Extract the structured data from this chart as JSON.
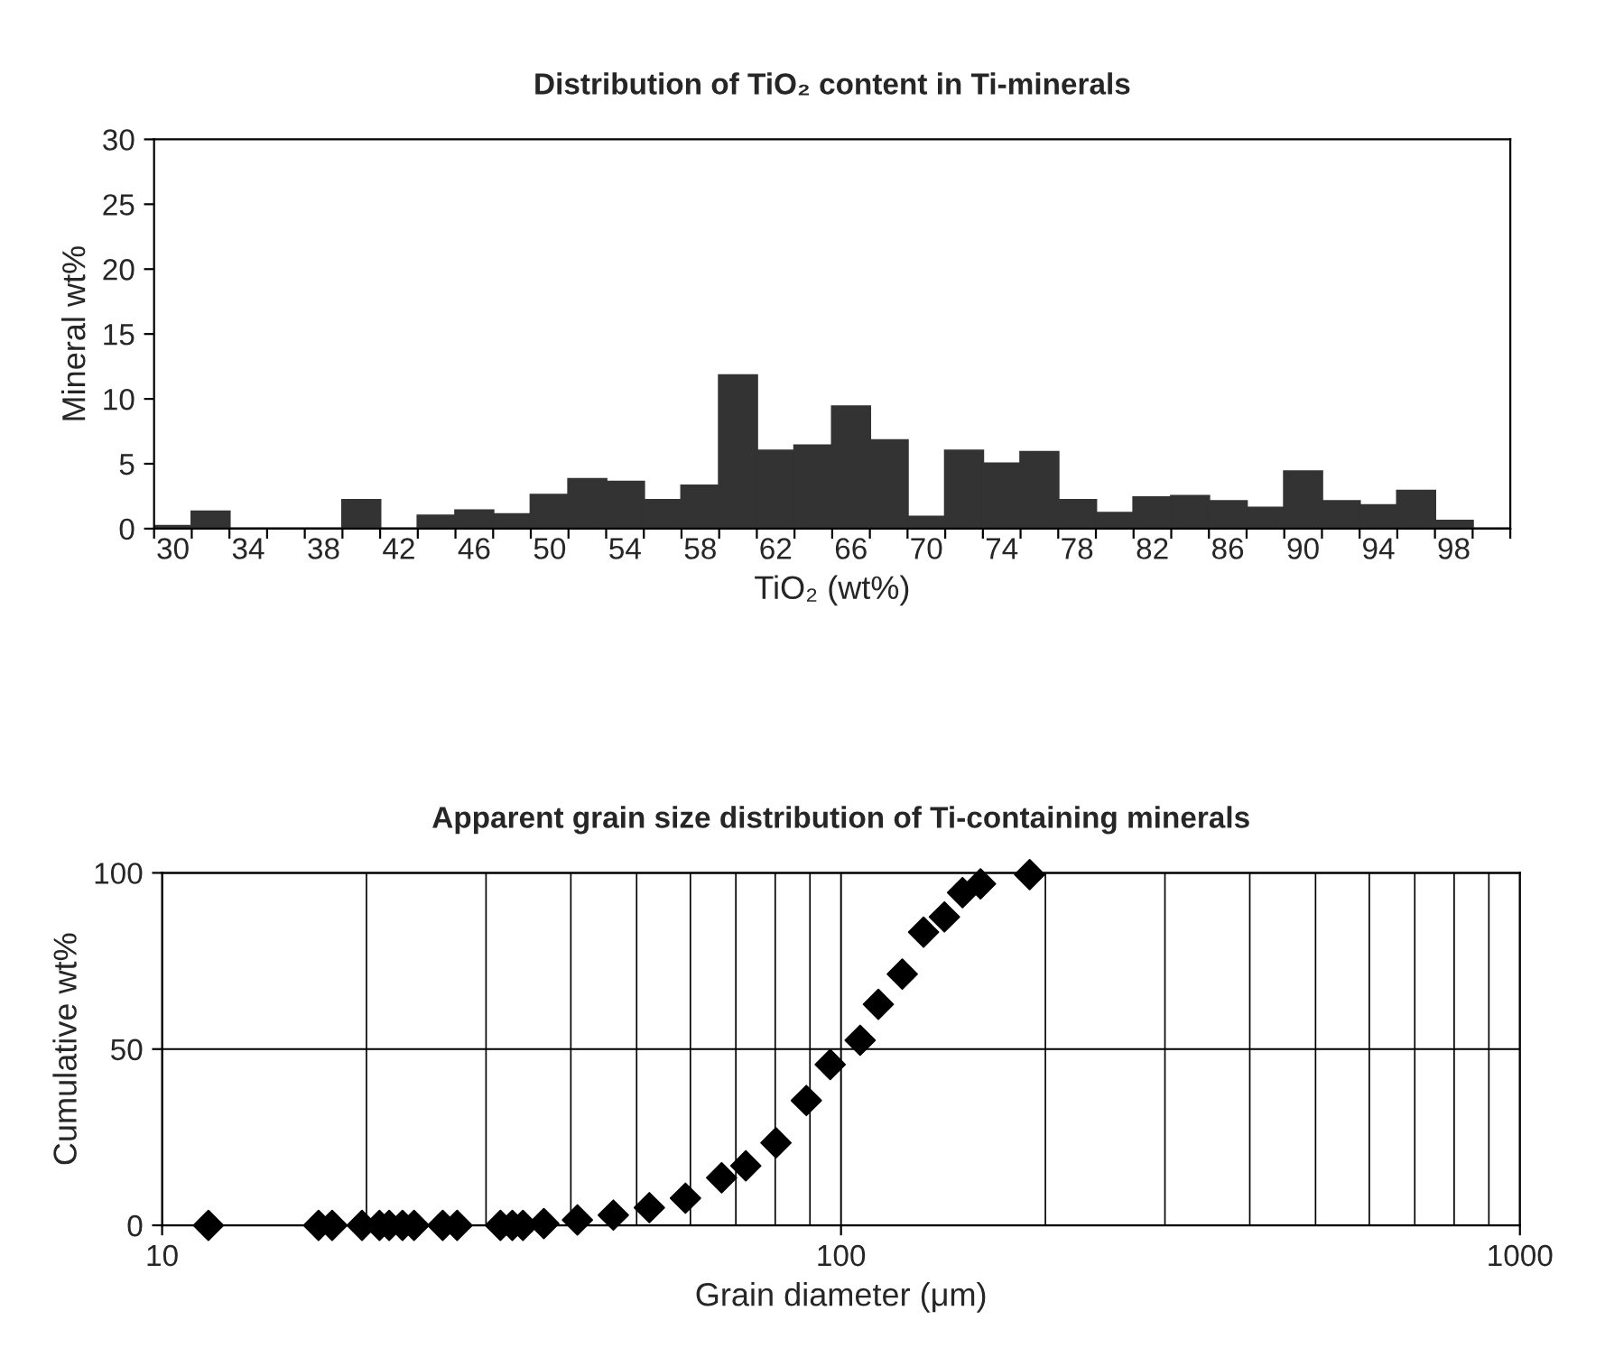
{
  "chart_data": [
    {
      "type": "bar",
      "title": "Distribution of TiO₂ content in Ti-minerals",
      "xlabel": "TiO₂ (wt%)",
      "ylabel": "Mineral wt%",
      "categories": [
        "30",
        null,
        "34",
        null,
        "38",
        null,
        "42",
        null,
        "46",
        null,
        "50",
        null,
        "54",
        null,
        "58",
        null,
        "62",
        null,
        "66",
        null,
        "70",
        null,
        "74",
        null,
        "78",
        null,
        "82",
        null,
        "86",
        null,
        "90",
        null,
        "94",
        null,
        "98",
        null
      ],
      "values": [
        0.2,
        1.3,
        0,
        0,
        0,
        2.2,
        0,
        1.0,
        1.4,
        1.1,
        2.6,
        3.8,
        3.6,
        2.2,
        3.3,
        11.8,
        6.0,
        6.4,
        9.4,
        6.8,
        0.9,
        6.0,
        5.0,
        5.9,
        2.2,
        1.2,
        2.4,
        2.5,
        2.1,
        1.6,
        4.4,
        2.1,
        1.8,
        2.9,
        0.6,
        0
      ],
      "color": "#333333",
      "ylim": [
        0,
        30
      ],
      "yticks": [
        0,
        5,
        10,
        15,
        20,
        25,
        30
      ],
      "grid": false
    },
    {
      "type": "scatter",
      "title": "Apparent grain size distribution of Ti-containing minerals",
      "xlabel": "Grain diameter (μm)",
      "ylabel": "Cumulative wt%",
      "x": [
        11.7,
        17.0,
        17.8,
        19.7,
        20.9,
        21.6,
        22.6,
        23.5,
        25.9,
        27.2,
        31.5,
        32.8,
        34.0,
        36.5,
        40.9,
        46.2,
        52.2,
        59.0,
        66.7,
        72.4,
        80.2,
        88.9,
        96.4,
        106.7,
        113.5,
        123.1,
        132.3,
        142.0,
        151.0,
        160.5,
        189.6
      ],
      "values": [
        0,
        0,
        0,
        0,
        0,
        0,
        0,
        0,
        0,
        0,
        0,
        0,
        0,
        0.5,
        1.5,
        2.9,
        5.0,
        7.7,
        13.5,
        16.9,
        23.4,
        35.4,
        45.6,
        52.5,
        62.7,
        71.3,
        83.2,
        87.5,
        94.4,
        96.9,
        99.5
      ],
      "color": "#000000",
      "marker": "diamond",
      "log": "x",
      "xlim": [
        10,
        1000
      ],
      "xticks": [
        10,
        100,
        1000
      ],
      "ylim": [
        0,
        100
      ],
      "yticks": [
        0,
        50,
        100
      ],
      "grid": true
    }
  ]
}
